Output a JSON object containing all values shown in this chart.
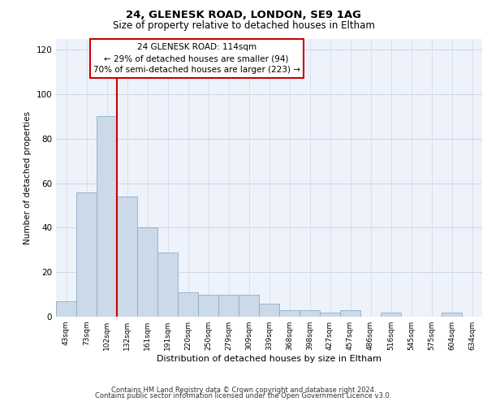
{
  "title1": "24, GLENESK ROAD, LONDON, SE9 1AG",
  "title2": "Size of property relative to detached houses in Eltham",
  "xlabel": "Distribution of detached houses by size in Eltham",
  "ylabel": "Number of detached properties",
  "categories": [
    "43sqm",
    "73sqm",
    "102sqm",
    "132sqm",
    "161sqm",
    "191sqm",
    "220sqm",
    "250sqm",
    "279sqm",
    "309sqm",
    "339sqm",
    "368sqm",
    "398sqm",
    "427sqm",
    "457sqm",
    "486sqm",
    "516sqm",
    "545sqm",
    "575sqm",
    "604sqm",
    "634sqm"
  ],
  "values": [
    7,
    56,
    90,
    54,
    40,
    29,
    11,
    10,
    10,
    10,
    6,
    3,
    3,
    2,
    3,
    0,
    2,
    0,
    0,
    2,
    0
  ],
  "bar_color": "#ccd9e8",
  "bar_edge_color": "#8aaec8",
  "vline_x": 2.5,
  "vline_color": "#cc0000",
  "annotation_text": "24 GLENESK ROAD: 114sqm\n← 29% of detached houses are smaller (94)\n70% of semi-detached houses are larger (223) →",
  "annotation_box_color": "#ffffff",
  "annotation_box_edge": "#cc0000",
  "ylim": [
    0,
    125
  ],
  "yticks": [
    0,
    20,
    40,
    60,
    80,
    100,
    120
  ],
  "grid_color": "#d0d8e8",
  "bg_color": "#eef2fa",
  "footer1": "Contains HM Land Registry data © Crown copyright and database right 2024.",
  "footer2": "Contains public sector information licensed under the Open Government Licence v3.0."
}
